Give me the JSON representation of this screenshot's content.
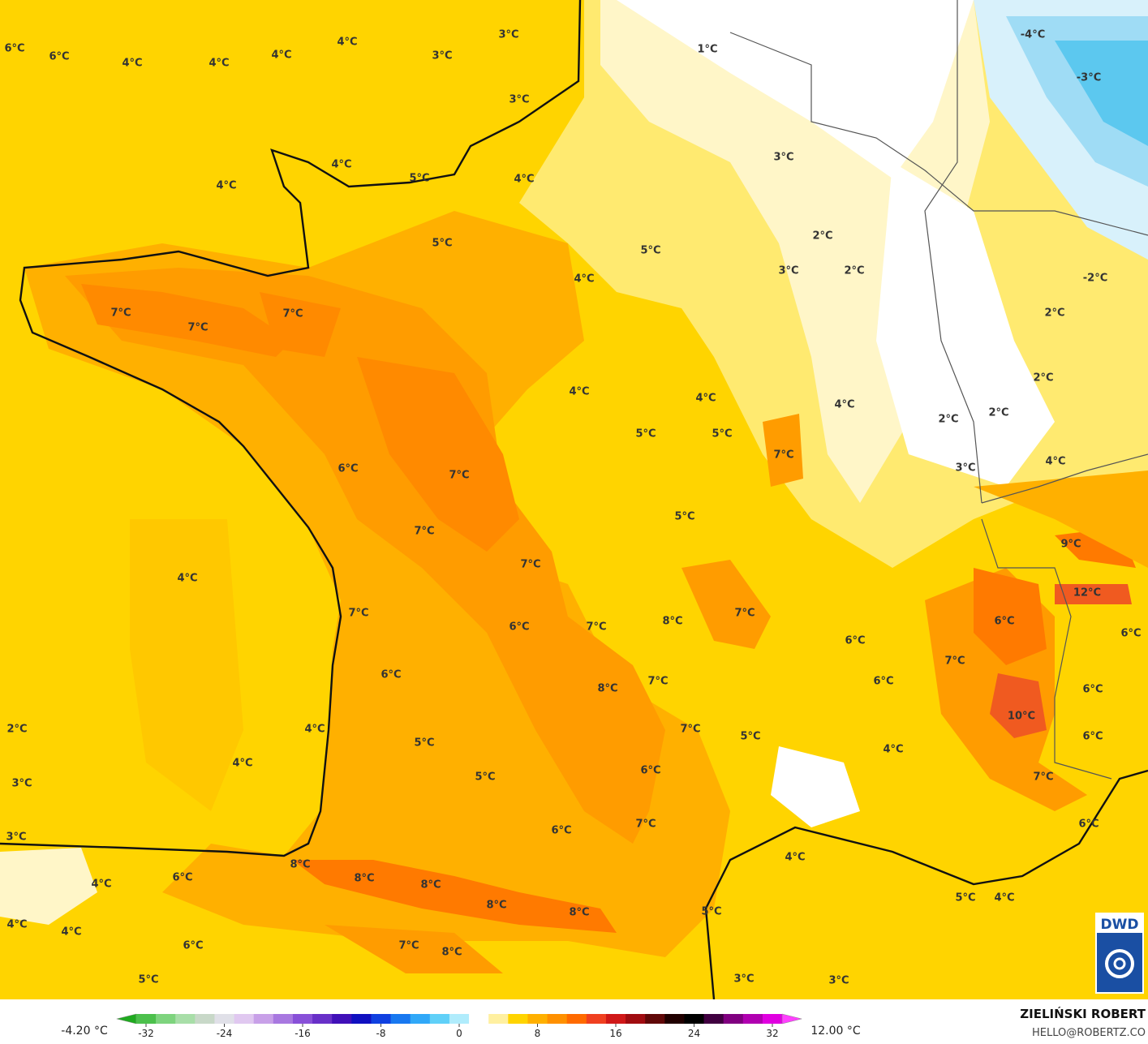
{
  "map": {
    "labels": [
      "6°C",
      "6°C",
      "4°C",
      "4°C",
      "4°C",
      "4°C",
      "3°C",
      "3°C",
      "3°C",
      "1°C",
      "-4°C",
      "-3°C",
      "4°C",
      "4°C",
      "5°C",
      "4°C",
      "3°C",
      "5°C",
      "5°C",
      "2°C",
      "4°C",
      "3°C",
      "2°C",
      "-2°C",
      "7°C",
      "7°C",
      "7°C",
      "2°C",
      "2°C",
      "4°C",
      "4°C",
      "4°C",
      "2°C",
      "2°C",
      "5°C",
      "5°C",
      "7°C",
      "4°C",
      "3°C",
      "6°C",
      "7°C",
      "5°C",
      "7°C",
      "9°C",
      "7°C",
      "4°C",
      "12°C",
      "7°C",
      "7°C",
      "8°C",
      "6°C",
      "7°C",
      "6°C",
      "6°C",
      "6°C",
      "7°C",
      "6°C",
      "7°C",
      "8°C",
      "6°C",
      "6°C",
      "10°C",
      "2°C",
      "4°C",
      "7°C",
      "5°C",
      "6°C",
      "5°C",
      "4°C",
      "4°C",
      "6°C",
      "5°C",
      "7°C",
      "3°C",
      "7°C",
      "6°C",
      "6°C",
      "3°C",
      "4°C",
      "8°C",
      "8°C",
      "4°C",
      "6°C",
      "8°C",
      "5°C",
      "4°C",
      "8°C",
      "5°C",
      "8°C",
      "4°C",
      "4°C",
      "7°C",
      "6°C",
      "8°C",
      "5°C",
      "3°C",
      "3°C"
    ]
  },
  "colorbar": {
    "min_label": "-4.20 °C",
    "max_label": "12.00 °C",
    "ticks": [
      -32,
      -24,
      -16,
      -8,
      0,
      8,
      16,
      24,
      32
    ]
  },
  "credits": {
    "author": "ZIELIŃSKI ROBERT",
    "contact": "HELLO@ROBERTZ.CO",
    "logo": "DWD"
  }
}
